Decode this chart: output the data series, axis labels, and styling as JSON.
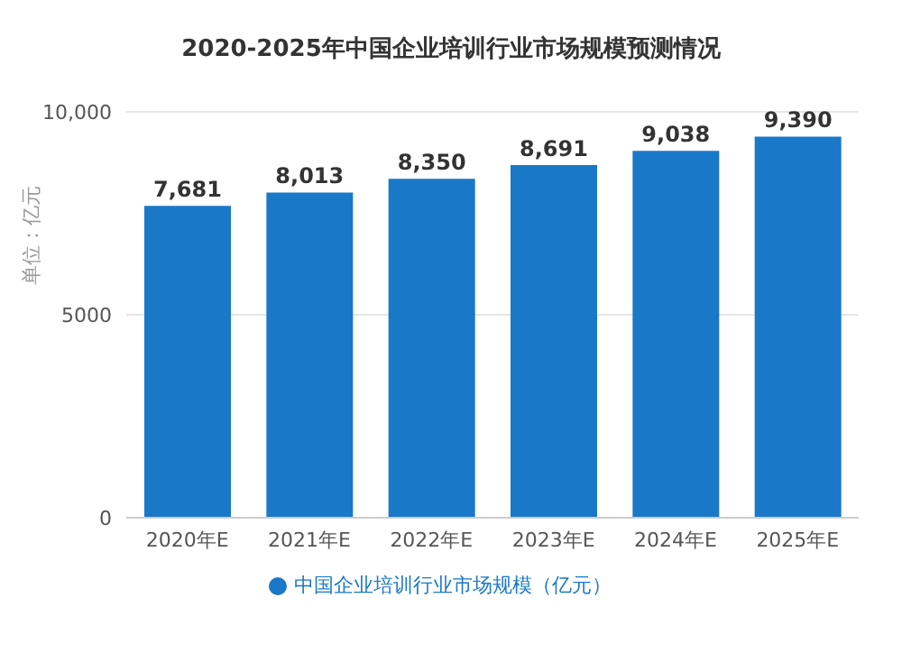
{
  "chart_data": {
    "type": "bar",
    "title": "2020-2025年中国企业培训行业市场规模预测情况",
    "ylabel": "单位：亿元",
    "categories": [
      "2020年E",
      "2021年E",
      "2022年E",
      "2023年E",
      "2024年E",
      "2025年E"
    ],
    "series": [
      {
        "name": "中国企业培训行业市场规模（亿元）",
        "color": "#1a78c8",
        "values": [
          7681,
          8013,
          8350,
          8691,
          9038,
          9390
        ],
        "value_labels": [
          "7,681",
          "8,013",
          "8,350",
          "8,691",
          "9,038",
          "9,390"
        ]
      }
    ],
    "ylim": [
      0,
      10000
    ],
    "yticks": [
      0,
      5000,
      {
        "value": 10000,
        "label": "10,000"
      }
    ],
    "grid": "y",
    "legend": "bottom"
  }
}
